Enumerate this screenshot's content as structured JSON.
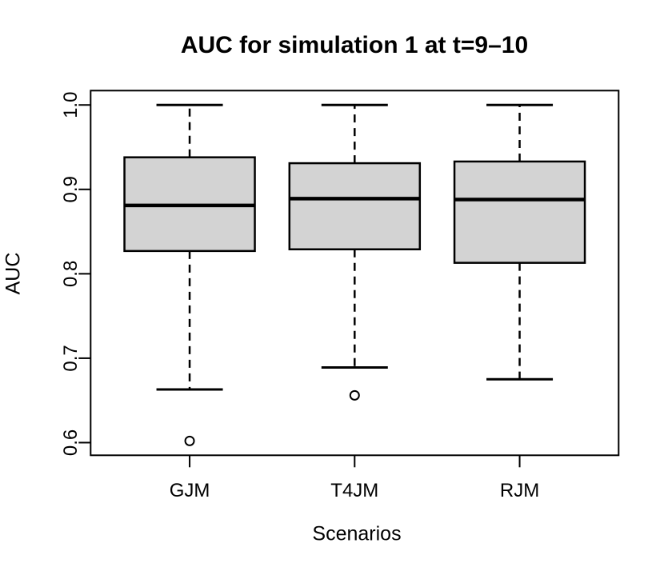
{
  "chart_data": {
    "type": "boxplot",
    "title": "AUC for simulation 1 at t=9–10",
    "xlabel": "Scenarios",
    "ylabel": "AUC",
    "categories": [
      "GJM",
      "T4JM",
      "RJM"
    ],
    "series": [
      {
        "name": "GJM",
        "whisker_low": 0.663,
        "q1": 0.827,
        "median": 0.881,
        "q3": 0.938,
        "whisker_high": 1.0,
        "outliers": [
          0.602
        ]
      },
      {
        "name": "T4JM",
        "whisker_low": 0.689,
        "q1": 0.829,
        "median": 0.889,
        "q3": 0.931,
        "whisker_high": 1.0,
        "outliers": [
          0.656
        ]
      },
      {
        "name": "RJM",
        "whisker_low": 0.675,
        "q1": 0.813,
        "median": 0.888,
        "q3": 0.933,
        "whisker_high": 1.0,
        "outliers": []
      }
    ],
    "y_ticks": [
      0.6,
      0.7,
      0.8,
      0.9,
      1.0
    ],
    "y_tick_labels": [
      "0.6",
      "0.7",
      "0.8",
      "0.9",
      "1.0"
    ],
    "ylim": [
      0.585,
      1.017
    ],
    "grid": false,
    "legend": "none",
    "box_fill": "#d3d3d3",
    "stroke_color": "#000000",
    "background": "#ffffff"
  }
}
